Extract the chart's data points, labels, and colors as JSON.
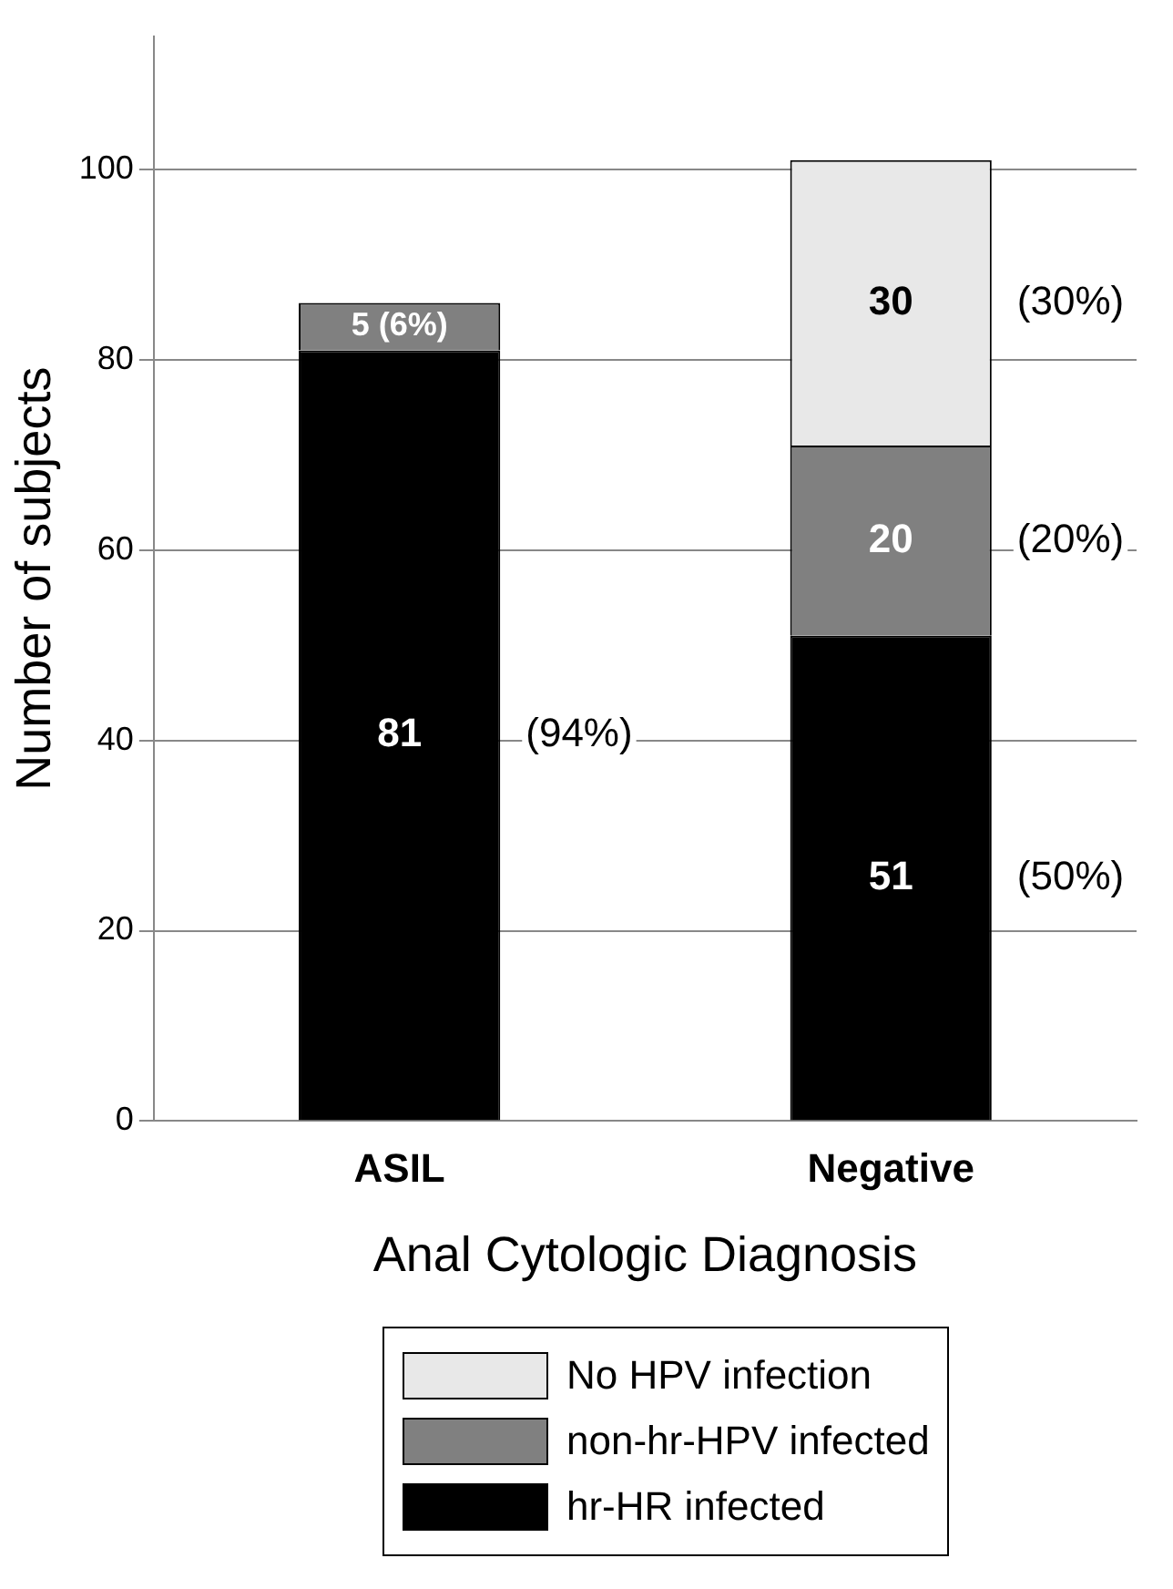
{
  "chart_data": {
    "type": "bar",
    "stacked": true,
    "categories": [
      "ASIL",
      "Negative"
    ],
    "series": [
      {
        "name": "hr-HR infected",
        "color": "#000000",
        "values": [
          81,
          51
        ],
        "value_labels": [
          "81",
          "51"
        ]
      },
      {
        "name": "non-hr-HPV infected",
        "color": "#808080",
        "values": [
          5,
          20
        ],
        "value_labels": [
          "5 (6%)",
          "20"
        ]
      },
      {
        "name": "No HPV infection",
        "color": "#e8e8e8",
        "values": [
          null,
          30
        ],
        "value_labels": [
          null,
          "30"
        ]
      }
    ],
    "xlabel": "Anal Cytologic Diagnosis",
    "ylabel": "Number of subjects",
    "ylim": [
      0,
      114
    ],
    "yticks": [
      0,
      20,
      40,
      60,
      80,
      100
    ],
    "grid": "y",
    "legend": "bottom",
    "annotations": [
      "(94%)",
      "(30%)",
      "(20%)",
      "(50%)"
    ]
  }
}
